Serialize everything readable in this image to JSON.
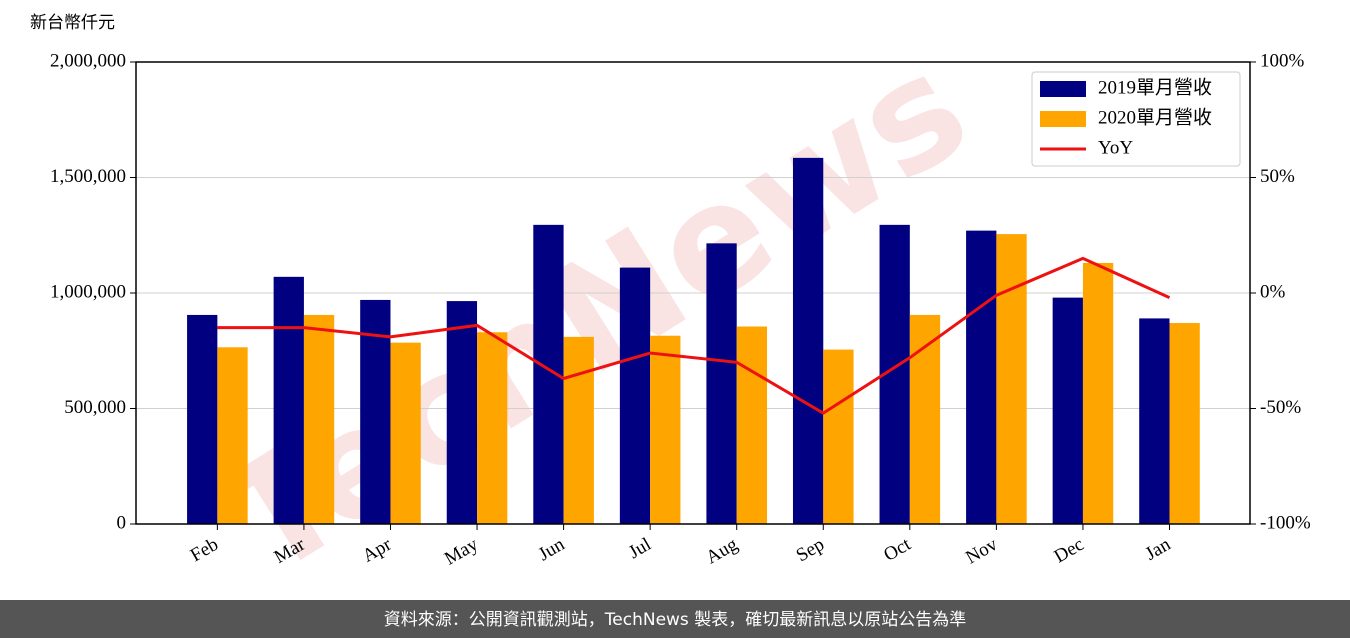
{
  "chart_data": {
    "type": "bar",
    "y_label": "新台幣仟元",
    "watermark": "TechNews",
    "categories": [
      "Feb",
      "Mar",
      "Apr",
      "May",
      "Jun",
      "Jul",
      "Aug",
      "Sep",
      "Oct",
      "Nov",
      "Dec",
      "Jan"
    ],
    "series": [
      {
        "name": "2019單月營收",
        "color": "#000080",
        "type": "bar",
        "values": [
          905000,
          1070000,
          970000,
          965000,
          1295000,
          1110000,
          1215000,
          1585000,
          1295000,
          1270000,
          980000,
          890000
        ]
      },
      {
        "name": "2020單月營收",
        "color": "#ffa500",
        "type": "bar",
        "values": [
          765000,
          905000,
          785000,
          830000,
          810000,
          815000,
          855000,
          755000,
          905000,
          1255000,
          1130000,
          870000
        ]
      },
      {
        "name": "YoY",
        "color": "#ee1111",
        "type": "line",
        "axis": "y2",
        "values": [
          -15,
          -15,
          -19,
          -14,
          -37,
          -26,
          -30,
          -52,
          -28,
          -1,
          15,
          -2
        ]
      }
    ],
    "ylim": [
      0,
      2000000
    ],
    "yticks": [
      0,
      {
        "value": 500000,
        "label": "500,000"
      },
      {
        "value": 1000000,
        "label": "1,000,000"
      },
      {
        "value": 1500000,
        "label": "1,500,000"
      },
      {
        "value": 2000000,
        "label": "2,000,000"
      }
    ],
    "y2lim": [
      -100,
      100
    ],
    "y2ticks": [
      {
        "value": -100,
        "label": "-100%"
      },
      {
        "value": -50,
        "label": "-50%"
      },
      {
        "value": 0,
        "label": "0%"
      },
      {
        "value": 50,
        "label": "50%"
      },
      {
        "value": 100,
        "label": "100%"
      }
    ],
    "grid": true,
    "legend": "upper right",
    "footer": "資料來源：公開資訊觀測站，TechNews 製表，確切最新訊息以原站公告為準"
  }
}
